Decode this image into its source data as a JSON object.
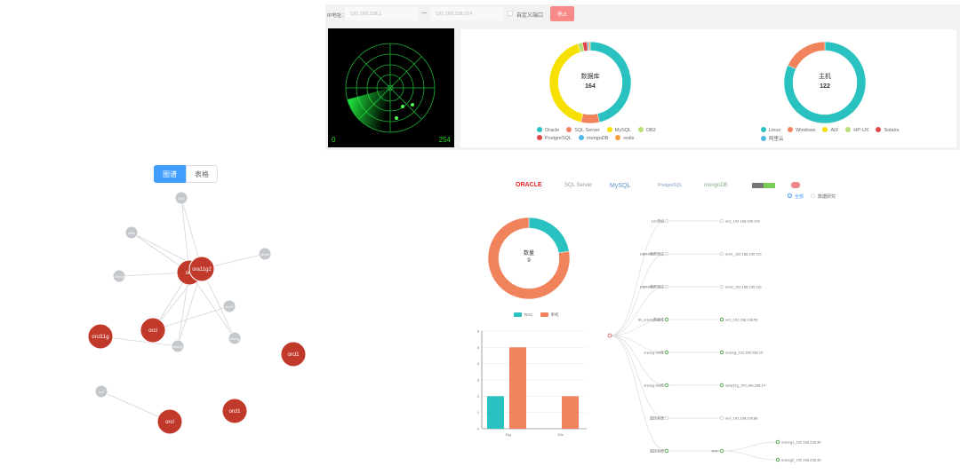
{
  "scan_bar": {
    "ip_label": "IP地址：",
    "ip_start": "192.168.238.1",
    "separator": "—",
    "ip_end": "192.168.238.254",
    "custom_port_label": "自定义端口",
    "custom_port_checked": false,
    "stop_button": "停止",
    "stop_color": "#f78989"
  },
  "radar": {
    "range_start": "0",
    "range_end": "254",
    "color": "#22dd44"
  },
  "db_donut": {
    "title": "数据库",
    "total": "164",
    "slices": [
      {
        "name": "Oracle",
        "value": 76,
        "color": "#2ac1c1"
      },
      {
        "name": "SQL Server",
        "value": 12,
        "color": "#f0825c"
      },
      {
        "name": "MySQL",
        "value": 68,
        "color": "#f5e000"
      },
      {
        "name": "DB2",
        "value": 3,
        "color": "#b8e07a"
      },
      {
        "name": "PostgreSQL",
        "value": 3,
        "color": "#e04848"
      },
      {
        "name": "mongoDB",
        "value": 1,
        "color": "#4fb8e6"
      },
      {
        "name": "redis",
        "value": 1,
        "color": "#f5a03c"
      }
    ]
  },
  "host_donut": {
    "title": "主机",
    "total": "122",
    "slices": [
      {
        "name": "Linux",
        "value": 100,
        "color": "#2ac1c1"
      },
      {
        "name": "Windows",
        "value": 22,
        "color": "#f0825c"
      },
      {
        "name": "AIX",
        "value": 0,
        "color": "#f5e000"
      },
      {
        "name": "HP-UX",
        "value": 0,
        "color": "#b8e07a"
      },
      {
        "name": "Solaris",
        "value": 0,
        "color": "#e04848"
      },
      {
        "name": "阿里云",
        "value": 0,
        "color": "#4fb8e6"
      }
    ]
  },
  "view_tabs": [
    {
      "label": "图谱",
      "active": true
    },
    {
      "label": "表格",
      "active": false
    }
  ],
  "graph": {
    "nodes": [
      {
        "id": "ora",
        "label": "ora",
        "type": "main"
      },
      {
        "id": "ora11g2",
        "label": "ora11g2",
        "type": "main"
      },
      {
        "id": "orcl_a",
        "label": "orcl",
        "type": "main"
      },
      {
        "id": "orcl11g",
        "label": "orcl11g",
        "type": "main"
      },
      {
        "id": "orcl1_a",
        "label": "orcl1",
        "type": "main"
      },
      {
        "id": "orcl_b",
        "label": "orcl",
        "type": "main"
      },
      {
        "id": "orcl1_b",
        "label": "orcl1",
        "type": "main"
      },
      {
        "id": "g1",
        "label": "cdb2",
        "type": "minor"
      },
      {
        "id": "g2",
        "label": "pdbe",
        "type": "minor"
      },
      {
        "id": "g3",
        "label": "ora10g",
        "type": "minor"
      },
      {
        "id": "g4",
        "label": "yikuan",
        "type": "minor"
      },
      {
        "id": "g5",
        "label": "orcl10",
        "type": "minor"
      },
      {
        "id": "g6",
        "label": "ora11g",
        "type": "minor"
      },
      {
        "id": "g7",
        "label": "ora11g",
        "type": "minor"
      },
      {
        "id": "g8",
        "label": "orcl",
        "type": "minor"
      }
    ],
    "edges": [
      [
        "g1",
        "ora"
      ],
      [
        "g1",
        "ora11g2"
      ],
      [
        "g2",
        "ora"
      ],
      [
        "g2",
        "ora11g2"
      ],
      [
        "g3",
        "ora"
      ],
      [
        "ora11g2",
        "g4"
      ],
      [
        "orcl_a",
        "ora"
      ],
      [
        "orcl_a",
        "ora11g2"
      ],
      [
        "orcl_a",
        "g5"
      ],
      [
        "g6",
        "ora"
      ],
      [
        "g6",
        "ora11g2"
      ],
      [
        "g6",
        "orcl11g"
      ],
      [
        "g7",
        "ora"
      ],
      [
        "g7",
        "ora11g2"
      ],
      [
        "g8",
        "orcl_b"
      ]
    ],
    "main_color": "#c0392b",
    "minor_color": "#c4c8cc"
  },
  "logos": [
    "ORACLE",
    "SQL Server",
    "MySQL",
    "PostgreSQL",
    "mongoDB",
    "redis-badge",
    "redis"
  ],
  "filter": {
    "options": [
      {
        "label": "全部",
        "selected": true
      },
      {
        "label": "数据研究",
        "selected": false
      }
    ]
  },
  "qty_donut": {
    "title": "数量",
    "total": "9",
    "slices": [
      {
        "name": "RAC",
        "value": 2,
        "color": "#2ac1c1"
      },
      {
        "name": "单机",
        "value": 7,
        "color": "#f0825c"
      }
    ]
  },
  "chart_data": {
    "type": "bar",
    "categories": [
      "11g",
      "12c"
    ],
    "series": [
      {
        "name": "RAC",
        "values": [
          2,
          0
        ],
        "color": "#2ac1c1"
      },
      {
        "name": "单机",
        "values": [
          5,
          2
        ],
        "color": "#f0825c"
      }
    ],
    "ylim": [
      0,
      6
    ],
    "yticks": [
      0,
      1,
      2,
      3,
      4,
      5,
      6
    ],
    "grid": true,
    "legend": "top"
  },
  "tree": {
    "branches": [
      {
        "label": "12c单机",
        "children": [
          {
            "label": "orcl_192.168.239.109",
            "ok": false
          }
        ],
        "ok": false
      },
      {
        "label": "DBRA集群测试",
        "children": [
          {
            "label": "orcl1_192.168.239.115",
            "ok": false
          }
        ],
        "ok": false
      },
      {
        "label": "DBRA集群测试",
        "children": [
          {
            "label": "orcl2_192.168.239.116",
            "ok": false
          }
        ],
        "ok": false
      },
      {
        "label": "lin_oracle数据库",
        "children": [
          {
            "label": "orcl_192.168.238.56",
            "ok": true
          }
        ],
        "ok": true
      },
      {
        "label": "ora11g DB库",
        "children": [
          {
            "label": "ora11g_192.168.238.15",
            "ok": true
          }
        ],
        "ok": true
      },
      {
        "label": "ora11g DB库",
        "children": [
          {
            "label": "sbdy11g_192.168.238.14",
            "ok": true
          }
        ],
        "ok": true
      },
      {
        "label": "监控系统",
        "children": [
          {
            "label": "orcl_192.168.239.88",
            "ok": false
          }
        ],
        "ok": false
      },
      {
        "label": "监控系统",
        "children": [
          {
            "label": "RAC",
            "ok": true,
            "children": [
              {
                "label": "ora11g1_192.168.238.35",
                "ok": true
              },
              {
                "label": "ora11g2_192.168.238.36",
                "ok": true
              }
            ]
          }
        ],
        "ok": true
      }
    ]
  }
}
